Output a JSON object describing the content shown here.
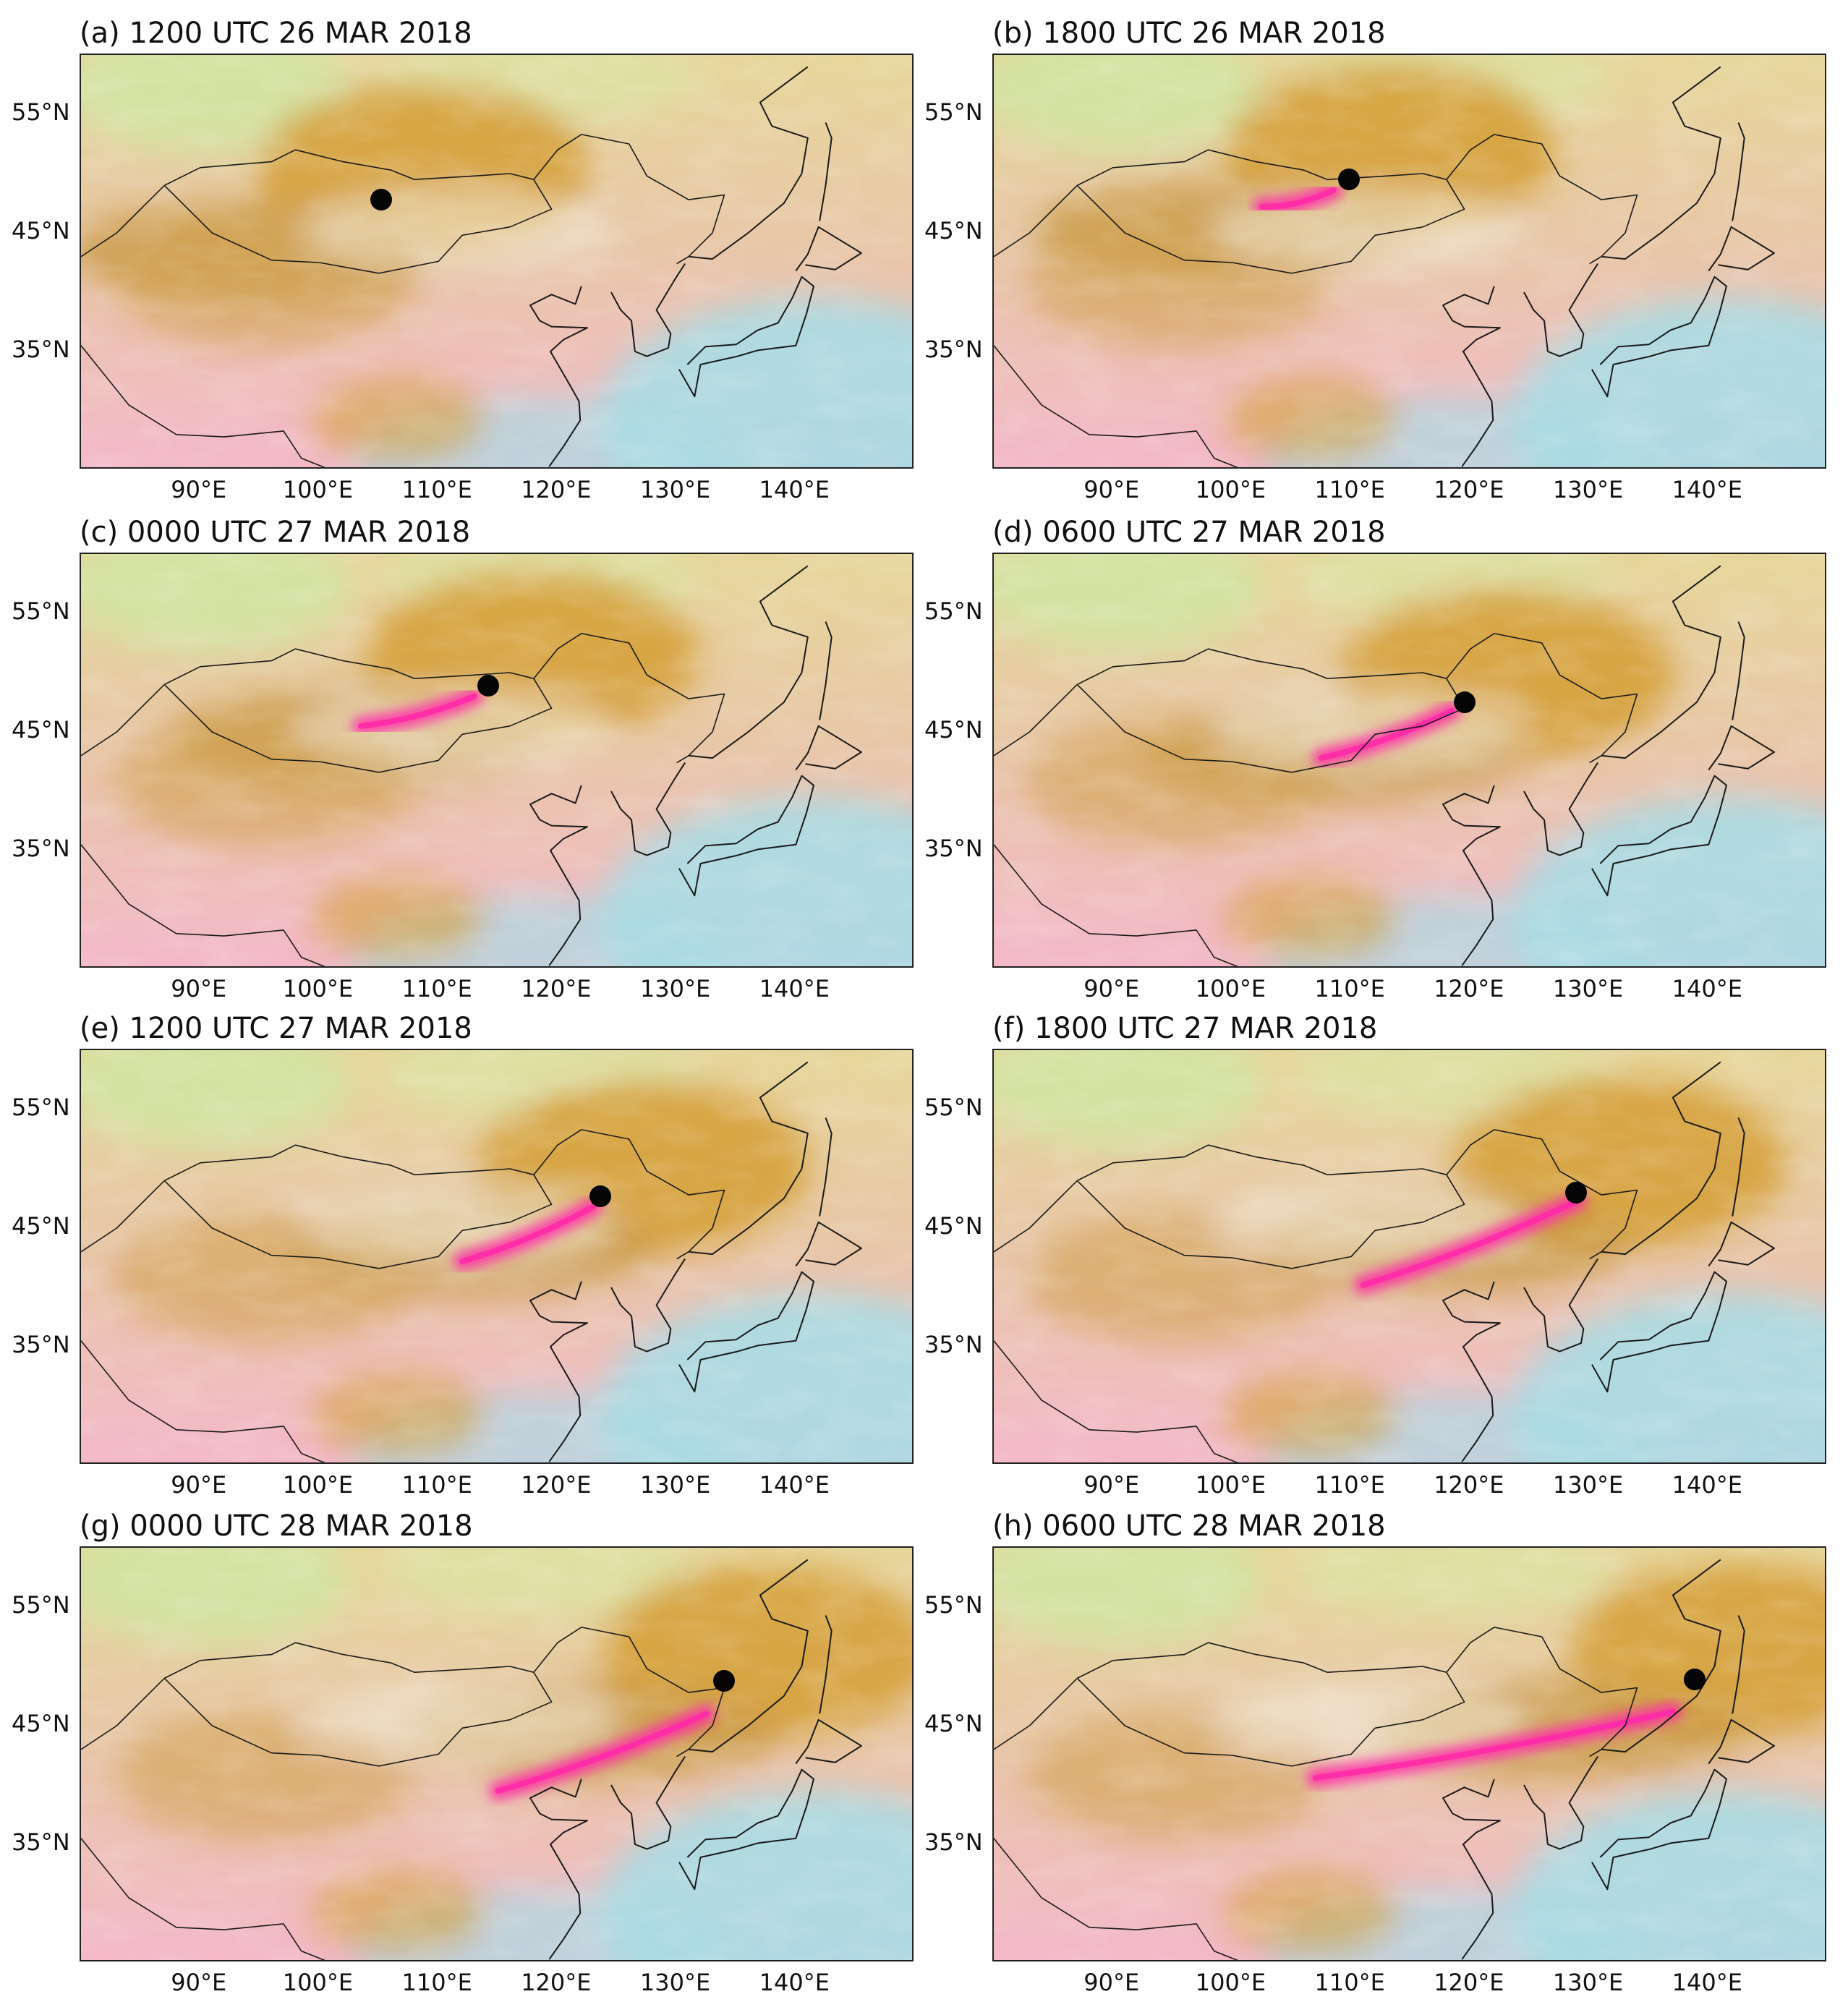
{
  "figure": {
    "panels": [
      {
        "label": "(a) 1200 UTC 26 MAR 2018",
        "storm_center": {
          "lon": 105.2,
          "lat": 47.8
        },
        "pink_band": null
      },
      {
        "label": "(b) 1800 UTC 26 MAR 2018",
        "storm_center": {
          "lon": 109.8,
          "lat": 49.5
        },
        "pink_band": {
          "from": [
            102.5,
            47.2
          ],
          "to": [
            108.5,
            48.6
          ]
        }
      },
      {
        "label": "(c) 0000 UTC 27 MAR 2018",
        "storm_center": {
          "lon": 114.2,
          "lat": 48.9
        },
        "pink_band": {
          "from": [
            103.5,
            45.5
          ],
          "to": [
            113.0,
            48.0
          ]
        }
      },
      {
        "label": "(d) 0600 UTC 27 MAR 2018",
        "storm_center": {
          "lon": 119.5,
          "lat": 47.5
        },
        "pink_band": {
          "from": [
            107.5,
            42.8
          ],
          "to": [
            118.5,
            46.8
          ]
        }
      },
      {
        "label": "(e) 1200 UTC 27 MAR 2018",
        "storm_center": {
          "lon": 123.6,
          "lat": 47.7
        },
        "pink_band": {
          "from": [
            112.0,
            42.2
          ],
          "to": [
            123.0,
            46.8
          ]
        }
      },
      {
        "label": "(f) 1800 UTC 27 MAR 2018",
        "storm_center": {
          "lon": 128.9,
          "lat": 48.0
        },
        "pink_band": {
          "from": [
            111.0,
            40.2
          ],
          "to": [
            129.0,
            47.3
          ]
        }
      },
      {
        "label": "(g) 0000 UTC 28 MAR 2018",
        "storm_center": {
          "lon": 134.0,
          "lat": 48.8
        },
        "pink_band": {
          "from": [
            115.0,
            39.5
          ],
          "to": [
            132.5,
            46.0
          ]
        }
      },
      {
        "label": "(h) 0600 UTC 28 MAR 2018",
        "storm_center": {
          "lon": 138.8,
          "lat": 48.9
        },
        "pink_band": {
          "from": [
            107.0,
            40.6
          ],
          "to": [
            137.0,
            46.2
          ]
        }
      }
    ],
    "axes": {
      "lon_ticks": [
        "90°E",
        "100°E",
        "110°E",
        "120°E",
        "130°E",
        "140°E"
      ],
      "lon_values": [
        90,
        100,
        110,
        120,
        130,
        140
      ],
      "lat_ticks": [
        "55°N",
        "45°N",
        "35°N"
      ],
      "lat_values": [
        55,
        45,
        35
      ],
      "lon_range": [
        80,
        150
      ],
      "lat_range": [
        25,
        60
      ]
    },
    "colors": {
      "dust_pink": "#ff2aa8",
      "cloud_ochre": "#d6a13a",
      "clear_pink": "#f4b8c8",
      "ocean_cyan": "#a9dce4",
      "storm_center": "#050505"
    }
  }
}
